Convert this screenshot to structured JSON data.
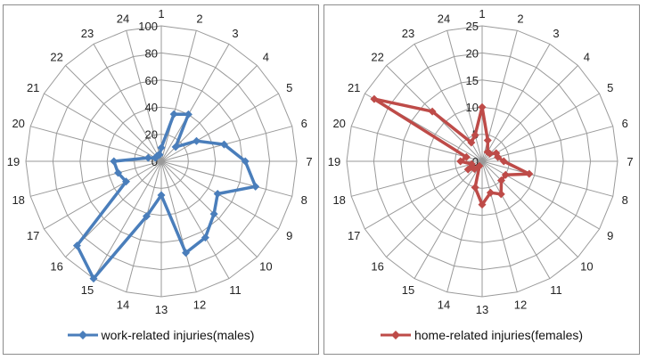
{
  "chart_data": [
    {
      "type": "radar",
      "categories": [
        "1",
        "2",
        "3",
        "4",
        "5",
        "6",
        "7",
        "8",
        "9",
        "10",
        "11",
        "12",
        "13",
        "14",
        "15",
        "16",
        "17",
        "18",
        "19",
        "20",
        "21",
        "22",
        "23",
        "24"
      ],
      "rlim": [
        0,
        100
      ],
      "ticks": [
        "0",
        "20",
        "40",
        "60",
        "80",
        "100"
      ],
      "grid": true,
      "legend": "bottom",
      "series": [
        {
          "name": "work-related injuries(males)",
          "color": "#4a7ebb",
          "values": [
            10,
            36,
            40,
            15,
            30,
            48,
            62,
            72,
            48,
            55,
            65,
            70,
            25,
            42,
            100,
            88,
            30,
            33,
            35,
            10,
            5,
            5,
            5,
            5
          ]
        }
      ]
    },
    {
      "type": "radar",
      "categories": [
        "1",
        "2",
        "3",
        "4",
        "5",
        "6",
        "7",
        "8",
        "9",
        "10",
        "11",
        "12",
        "13",
        "14",
        "15",
        "16",
        "17",
        "18",
        "19",
        "20",
        "21",
        "22",
        "23",
        "24"
      ],
      "rlim": [
        0,
        25
      ],
      "ticks": [
        "0",
        "5",
        "10",
        "15",
        "20",
        "25"
      ],
      "grid": true,
      "legend": "bottom",
      "series": [
        {
          "name": "home-related injuries(females)",
          "color": "#be4b48",
          "values": [
            10,
            4,
            2,
            2,
            3,
            3,
            4,
            9,
            5,
            5,
            7,
            6,
            8,
            5,
            1,
            2,
            3,
            2,
            4,
            3,
            23,
            13,
            4,
            5
          ]
        }
      ]
    }
  ]
}
